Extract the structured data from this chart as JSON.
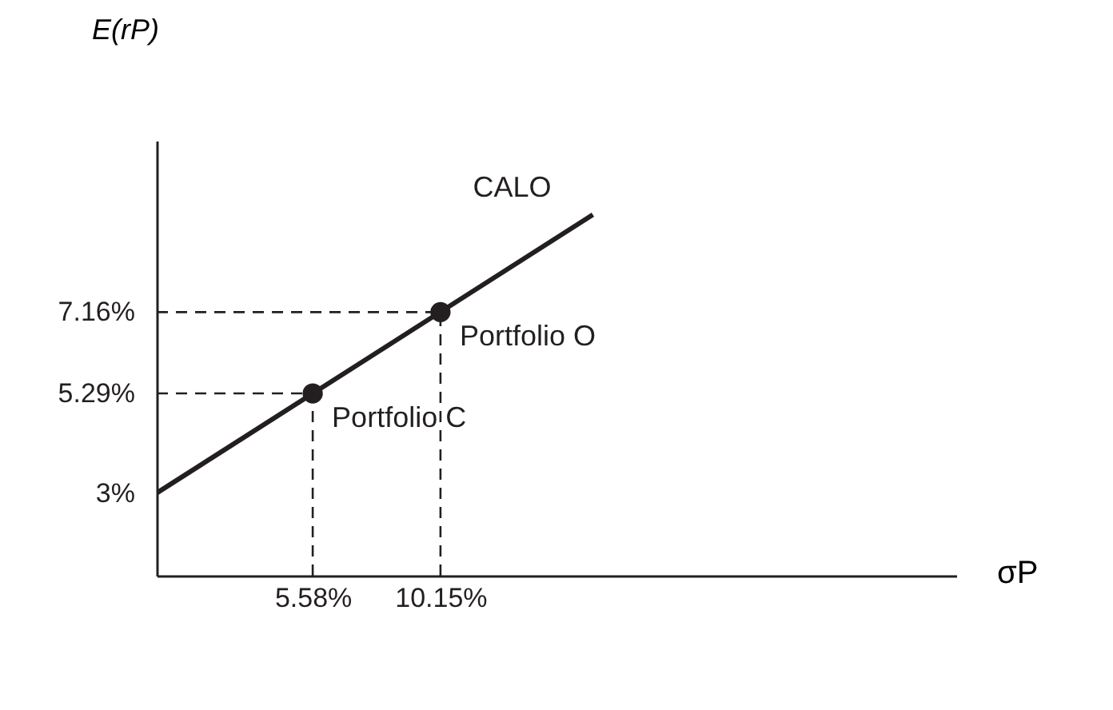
{
  "chart_data": {
    "type": "line",
    "xlabel": "σP",
    "ylabel": "E(rP)",
    "series": [
      {
        "color": "#231f20",
        "marker": "none",
        "x": [
          0,
          15.6
        ],
        "values": [
          3,
          9.4
        ]
      },
      {
        "type": "scatter",
        "marker": "circle",
        "color": "#231f20",
        "x": [
          5.58,
          10.15
        ],
        "values": [
          5.29,
          7.16
        ]
      }
    ],
    "xlim": [
      0,
      28.6
    ],
    "ylim": [
      1.1,
      11.1
    ],
    "xticks": [
      {
        "value": 5.58,
        "label": "5.58%"
      },
      {
        "value": 10.15,
        "label": "10.15%"
      }
    ],
    "yticks": [
      {
        "value": 3,
        "label": "3%"
      },
      {
        "value": 5.29,
        "label": "5.29%"
      },
      {
        "value": 7.16,
        "label": "7.16%"
      }
    ],
    "ref_lines": [
      {
        "axis": "y",
        "value": 5.29,
        "line_style": "dashed"
      },
      {
        "axis": "y",
        "value": 7.16,
        "line_style": "dashed"
      },
      {
        "axis": "x",
        "value": 5.58,
        "line_style": "dashed"
      },
      {
        "axis": "x",
        "value": 10.15,
        "line_style": "dashed"
      }
    ],
    "annotations": [
      {
        "text": "Portfolio C",
        "x": 5.58,
        "y": 5.29
      },
      {
        "text": "Portfolio O",
        "x": 10.15,
        "y": 7.16
      },
      {
        "text": "CALO",
        "x": 15.6,
        "y": 9.4
      }
    ],
    "grid": false,
    "line_style": "solid"
  }
}
